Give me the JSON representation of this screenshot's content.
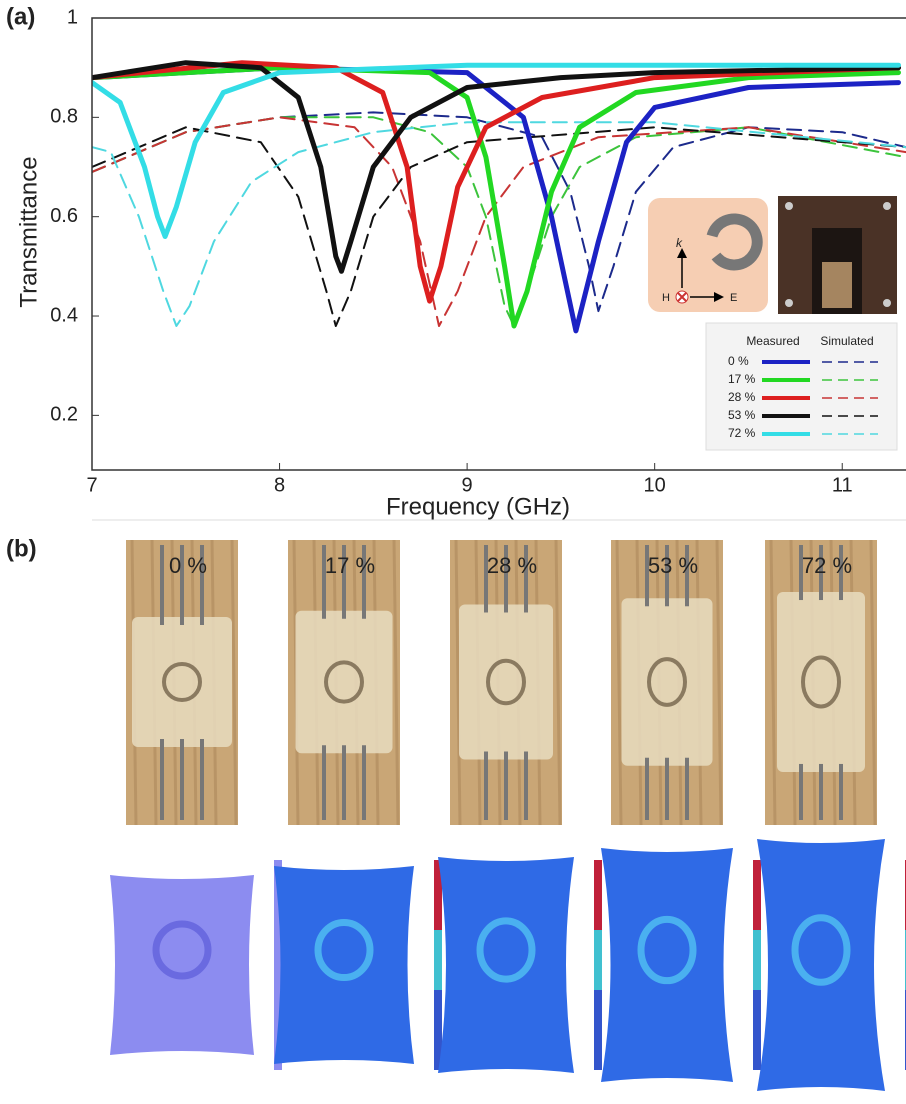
{
  "chart_data": {
    "type": "line",
    "panel_label": "(a)",
    "x_label": "Frequency (GHz)",
    "y_label": "Transmittance",
    "xlim": [
      7,
      11.34
    ],
    "ylim": [
      0.09,
      1
    ],
    "xticks": [
      7,
      8,
      9,
      10,
      11
    ],
    "yticks": [
      0.2,
      0.4,
      0.6,
      0.8,
      1
    ],
    "legend": {
      "headers": [
        "Measured",
        "Simulated"
      ],
      "corner": "lower-right"
    },
    "series": [
      {
        "name": "0 %",
        "color": "#1c22c4",
        "sim_color": "#1c2a8c",
        "measured": {
          "x": [
            7,
            8,
            9,
            9.3,
            9.45,
            9.58,
            9.7,
            9.85,
            10,
            10.5,
            11.3
          ],
          "values": [
            0.88,
            0.9,
            0.89,
            0.8,
            0.6,
            0.37,
            0.55,
            0.75,
            0.82,
            0.86,
            0.87
          ]
        },
        "simulated": {
          "x": [
            7,
            7.5,
            8,
            8.5,
            9,
            9.4,
            9.55,
            9.65,
            9.7,
            9.78,
            9.9,
            10.1,
            10.5,
            11,
            11.34
          ],
          "values": [
            0.69,
            0.77,
            0.8,
            0.81,
            0.8,
            0.76,
            0.65,
            0.5,
            0.41,
            0.5,
            0.65,
            0.74,
            0.78,
            0.77,
            0.74
          ]
        }
      },
      {
        "name": "17 %",
        "color": "#22d822",
        "sim_color": "#3cc43c",
        "measured": {
          "x": [
            7,
            8,
            8.8,
            9,
            9.1,
            9.2,
            9.25,
            9.32,
            9.45,
            9.6,
            9.9,
            10.5,
            11.3
          ],
          "values": [
            0.88,
            0.9,
            0.89,
            0.84,
            0.72,
            0.5,
            0.38,
            0.45,
            0.65,
            0.78,
            0.85,
            0.88,
            0.89
          ]
        },
        "simulated": {
          "x": [
            7,
            7.5,
            8,
            8.5,
            8.8,
            9,
            9.1,
            9.2,
            9.25,
            9.32,
            9.45,
            9.6,
            9.9,
            10.5,
            11.34
          ],
          "values": [
            0.69,
            0.77,
            0.8,
            0.8,
            0.77,
            0.7,
            0.6,
            0.42,
            0.38,
            0.45,
            0.6,
            0.7,
            0.76,
            0.78,
            0.72
          ]
        }
      },
      {
        "name": "28 %",
        "color": "#dd1f1f",
        "sim_color": "#c83434",
        "measured": {
          "x": [
            7,
            7.8,
            8.3,
            8.55,
            8.68,
            8.75,
            8.8,
            8.86,
            8.95,
            9.1,
            9.4,
            10,
            11.3
          ],
          "values": [
            0.88,
            0.91,
            0.9,
            0.85,
            0.7,
            0.5,
            0.43,
            0.5,
            0.66,
            0.78,
            0.84,
            0.88,
            0.9
          ]
        },
        "simulated": {
          "x": [
            7,
            7.5,
            8,
            8.4,
            8.6,
            8.75,
            8.85,
            8.95,
            9.1,
            9.3,
            9.7,
            10.5,
            11.34
          ],
          "values": [
            0.69,
            0.77,
            0.8,
            0.78,
            0.7,
            0.55,
            0.38,
            0.45,
            0.6,
            0.7,
            0.76,
            0.78,
            0.73
          ]
        }
      },
      {
        "name": "53 %",
        "color": "#111111",
        "sim_color": "#111111",
        "measured": {
          "x": [
            7,
            7.5,
            7.9,
            8.1,
            8.22,
            8.3,
            8.33,
            8.38,
            8.5,
            8.7,
            9,
            9.5,
            10,
            11.3
          ],
          "values": [
            0.88,
            0.91,
            0.9,
            0.84,
            0.7,
            0.52,
            0.49,
            0.55,
            0.7,
            0.8,
            0.86,
            0.88,
            0.89,
            0.9
          ]
        },
        "simulated": {
          "x": [
            7,
            7.5,
            7.9,
            8.1,
            8.25,
            8.3,
            8.38,
            8.5,
            8.7,
            9,
            10,
            11.34
          ],
          "values": [
            0.7,
            0.78,
            0.75,
            0.64,
            0.45,
            0.38,
            0.45,
            0.6,
            0.7,
            0.75,
            0.78,
            0.74
          ]
        }
      },
      {
        "name": "72 %",
        "color": "#33dde6",
        "sim_color": "#4fd8e0",
        "measured": {
          "x": [
            7,
            7.15,
            7.28,
            7.35,
            7.39,
            7.45,
            7.55,
            7.7,
            8,
            9,
            10,
            11.3
          ],
          "values": [
            0.87,
            0.83,
            0.7,
            0.6,
            0.56,
            0.62,
            0.75,
            0.85,
            0.89,
            0.905,
            0.905,
            0.905
          ]
        },
        "simulated": {
          "x": [
            7,
            7.1,
            7.25,
            7.38,
            7.45,
            7.52,
            7.65,
            7.85,
            8.1,
            8.5,
            9,
            10,
            11.34
          ],
          "values": [
            0.74,
            0.73,
            0.6,
            0.45,
            0.38,
            0.42,
            0.55,
            0.67,
            0.73,
            0.77,
            0.79,
            0.79,
            0.74
          ]
        }
      }
    ],
    "inset": {
      "k": "k",
      "H": "H",
      "E": "E"
    }
  },
  "panel_b": {
    "panel_label": "(b)",
    "samples": [
      "0 %",
      "17 %",
      "28 %",
      "53 %",
      "72 %"
    ]
  }
}
